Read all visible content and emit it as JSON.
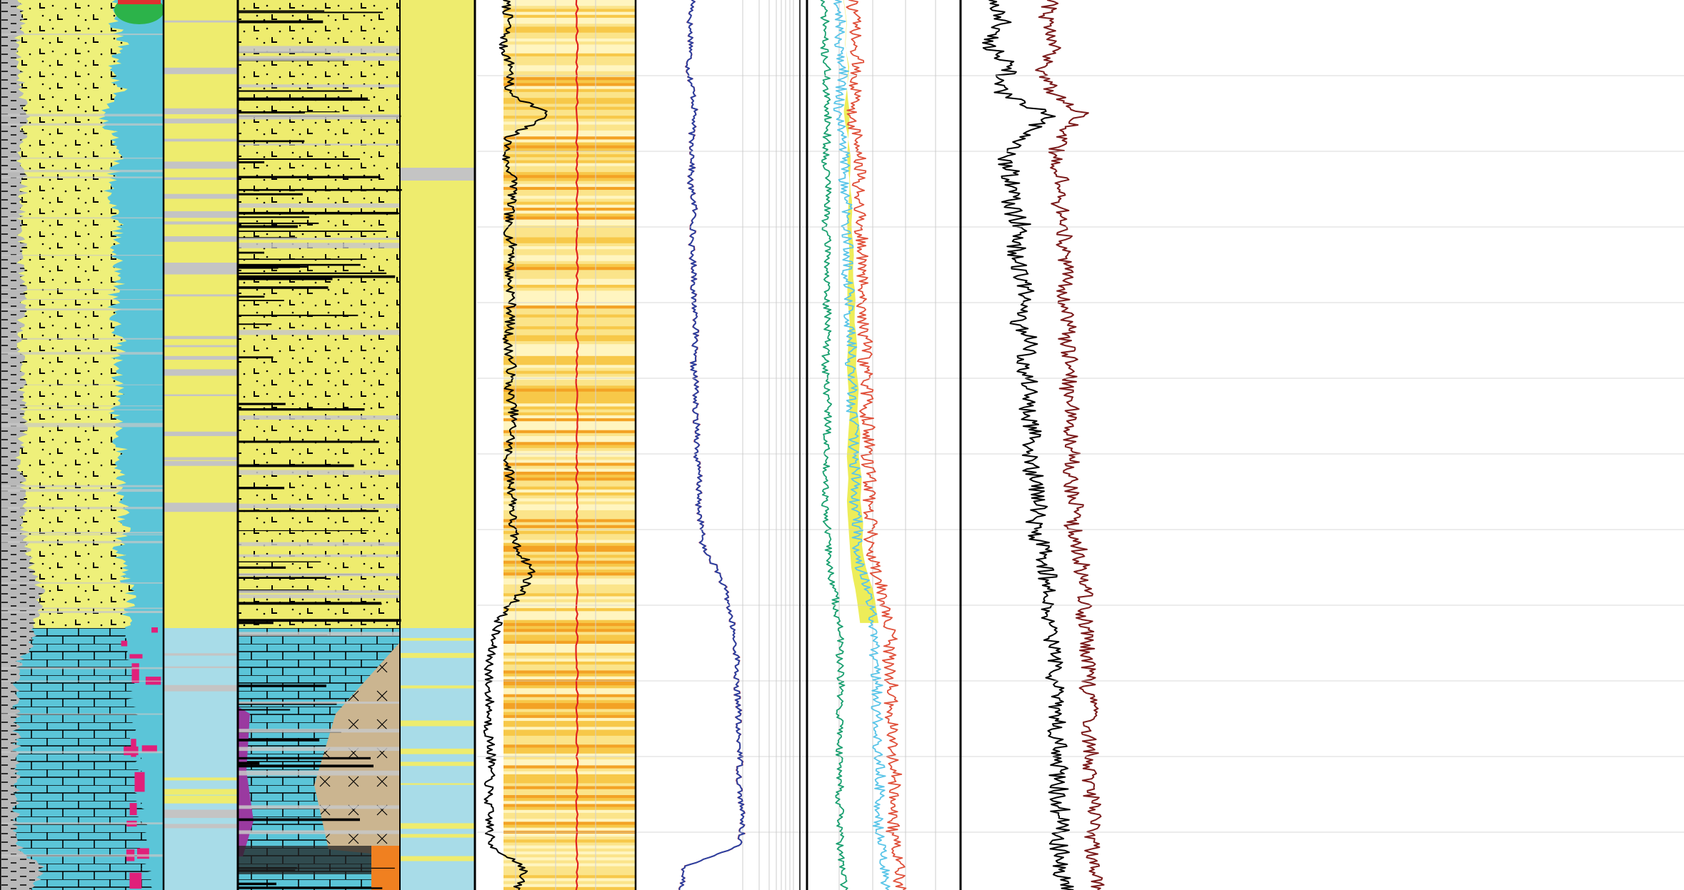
{
  "chart_data": [
    {
      "type": "area",
      "track": "lithology-fraction",
      "depth_samples": 40,
      "shale_right": [
        0.12,
        0.14,
        0.1,
        0.13,
        0.12,
        0.16,
        0.14,
        0.11,
        0.15,
        0.13,
        0.12,
        0.14,
        0.12,
        0.15,
        0.13,
        0.12,
        0.14,
        0.13,
        0.15,
        0.14,
        0.12,
        0.13,
        0.15,
        0.14,
        0.16,
        0.2,
        0.25,
        0.22,
        0.2,
        0.12,
        0.1,
        0.1,
        0.1,
        0.1,
        0.1,
        0.1,
        0.1,
        0.1,
        0.25,
        0.2
      ],
      "matrix_right": [
        0.72,
        0.7,
        0.75,
        0.68,
        0.74,
        0.62,
        0.7,
        0.73,
        0.66,
        0.7,
        0.72,
        0.68,
        0.74,
        0.69,
        0.7,
        0.73,
        0.71,
        0.72,
        0.7,
        0.72,
        0.74,
        0.73,
        0.74,
        0.76,
        0.72,
        0.74,
        0.8,
        0.76,
        0.78,
        0.8,
        0.8,
        0.82,
        0.8,
        0.82,
        0.84,
        0.84,
        0.86,
        0.88,
        0.9,
        0.88
      ],
      "colors": {
        "shale": "#b8b8b8",
        "sandstone": "#eef07a",
        "limestone": "#5bc5d8",
        "calcite": "#e0207a",
        "gas": "#2cb34a"
      }
    },
    {
      "type": "area",
      "track": "log-curves-1",
      "depth_samples": 40,
      "gamma_ray": [
        0.18,
        0.2,
        0.16,
        0.22,
        0.19,
        0.45,
        0.2,
        0.18,
        0.24,
        0.21,
        0.19,
        0.23,
        0.2,
        0.22,
        0.21,
        0.19,
        0.22,
        0.2,
        0.23,
        0.22,
        0.19,
        0.21,
        0.23,
        0.22,
        0.25,
        0.35,
        0.28,
        0.15,
        0.1,
        0.08,
        0.07,
        0.08,
        0.07,
        0.09,
        0.08,
        0.07,
        0.08,
        0.08,
        0.3,
        0.25
      ],
      "resistivity": [
        0.35,
        0.33,
        0.34,
        0.32,
        0.35,
        0.36,
        0.34,
        0.35,
        0.33,
        0.36,
        0.35,
        0.34,
        0.36,
        0.35,
        0.37,
        0.36,
        0.35,
        0.37,
        0.36,
        0.38,
        0.37,
        0.39,
        0.38,
        0.4,
        0.41,
        0.5,
        0.55,
        0.58,
        0.6,
        0.62,
        0.61,
        0.63,
        0.62,
        0.64,
        0.63,
        0.64,
        0.65,
        0.64,
        0.3,
        0.28
      ],
      "colors": {
        "curve_gr": "#000000",
        "curve_res": "#2b3fa0",
        "curve_res_alt": "#d83a2a",
        "heat_low": "#fff5c0",
        "heat_high": "#f0a020"
      }
    },
    {
      "type": "line",
      "track": "log-curves-2",
      "depth_samples": 40,
      "porosity_a": [
        0.2,
        0.22,
        0.21,
        0.24,
        0.22,
        0.2,
        0.23,
        0.25,
        0.24,
        0.26,
        0.25,
        0.27,
        0.26,
        0.28,
        0.27,
        0.29,
        0.28,
        0.3,
        0.29,
        0.31,
        0.3,
        0.32,
        0.31,
        0.33,
        0.32,
        0.35,
        0.4,
        0.42,
        0.45,
        0.44,
        0.46,
        0.45,
        0.47,
        0.46,
        0.48,
        0.47,
        0.46,
        0.48,
        0.5,
        0.52
      ],
      "porosity_b": [
        0.1,
        0.12,
        0.11,
        0.13,
        0.12,
        0.14,
        0.13,
        0.12,
        0.14,
        0.13,
        0.12,
        0.14,
        0.13,
        0.12,
        0.14,
        0.13,
        0.12,
        0.13,
        0.14,
        0.13,
        0.12,
        0.13,
        0.12,
        0.13,
        0.14,
        0.15,
        0.18,
        0.2,
        0.22,
        0.21,
        0.22,
        0.21,
        0.22,
        0.21,
        0.22,
        0.21,
        0.22,
        0.21,
        0.23,
        0.24
      ],
      "sonic_a": [
        0.2,
        0.25,
        0.18,
        0.3,
        0.22,
        0.55,
        0.35,
        0.28,
        0.32,
        0.3,
        0.38,
        0.33,
        0.36,
        0.4,
        0.35,
        0.42,
        0.38,
        0.44,
        0.4,
        0.46,
        0.42,
        0.45,
        0.48,
        0.44,
        0.5,
        0.52,
        0.55,
        0.53,
        0.56,
        0.58,
        0.57,
        0.59,
        0.58,
        0.6,
        0.59,
        0.6,
        0.61,
        0.6,
        0.62,
        0.63
      ],
      "sonic_b": [
        0.55,
        0.52,
        0.58,
        0.5,
        0.56,
        0.75,
        0.6,
        0.58,
        0.62,
        0.6,
        0.64,
        0.62,
        0.65,
        0.63,
        0.66,
        0.64,
        0.67,
        0.65,
        0.68,
        0.66,
        0.69,
        0.67,
        0.7,
        0.68,
        0.72,
        0.74,
        0.76,
        0.75,
        0.77,
        0.78,
        0.77,
        0.79,
        0.78,
        0.8,
        0.79,
        0.8,
        0.81,
        0.8,
        0.82,
        0.83
      ],
      "colors": {
        "curve_blue": "#2b3fa0",
        "curve_black": "#000000",
        "curve_maroon": "#7a1a1a",
        "curve_green": "#1aa070",
        "curve_cyan": "#5bc5e8",
        "curve_red": "#e0503a",
        "grid": "#cccccc"
      }
    }
  ]
}
